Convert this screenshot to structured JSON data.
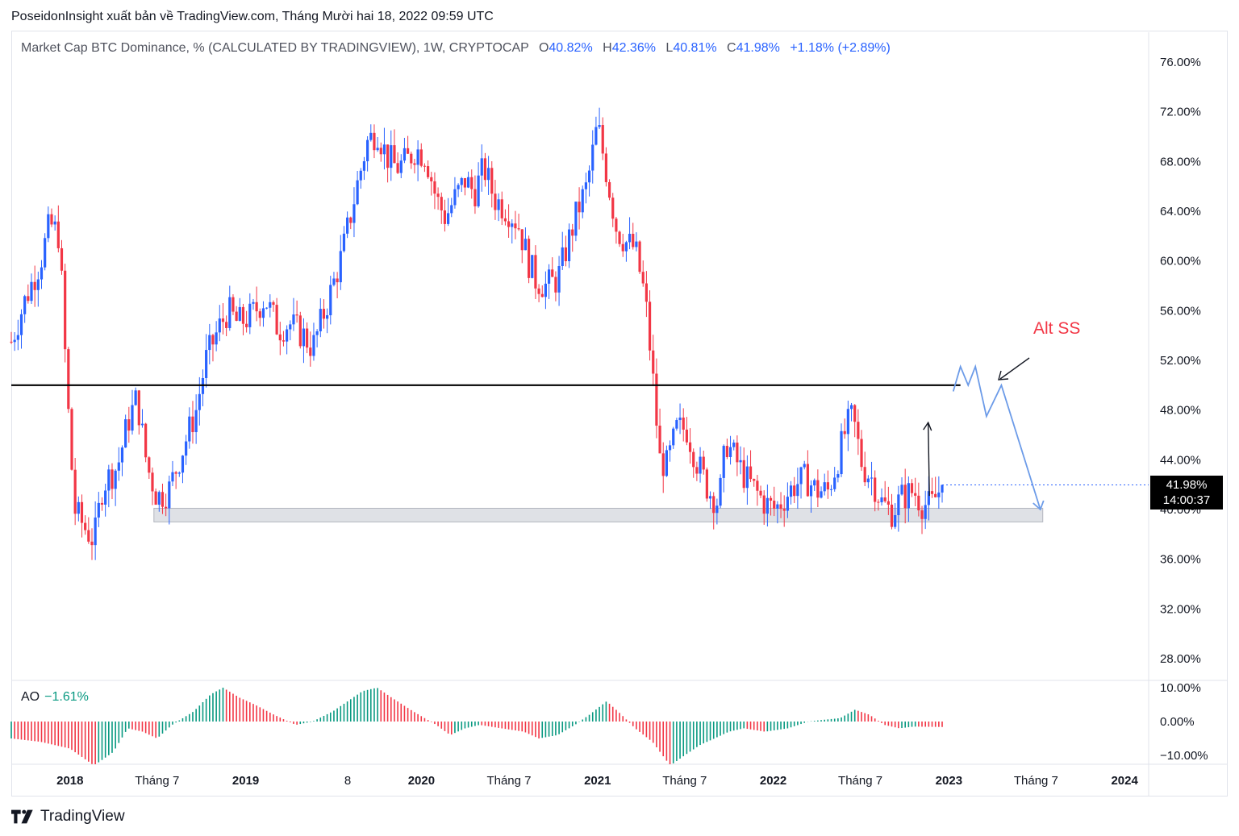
{
  "header": {
    "publisher_line": "PoseidonInsight xuất bản về TradingView.com, Tháng Mười hai 18, 2022 09:59 UTC"
  },
  "legend": {
    "symbol": "Market Cap BTC Dominance, % (CALCULATED BY TRADINGVIEW), 1W, CRYPTOCAP",
    "open_label": "O",
    "open": "40.82%",
    "high_label": "H",
    "high": "42.36%",
    "low_label": "L",
    "low": "40.81%",
    "close_label": "C",
    "close": "41.98%",
    "change": "+1.18% (+2.89%)"
  },
  "indicator": {
    "name": "AO",
    "value": "−1.61%",
    "axis_labels": [
      "10.00%",
      "0.00%",
      "−10.00%"
    ]
  },
  "price_badge": {
    "price": "41.98%",
    "countdown": "14:00:37"
  },
  "annotation": {
    "alt_ss": "Alt SS"
  },
  "footer": {
    "brand": "TradingView"
  },
  "colors": {
    "up": "#2962ff",
    "down": "#f23645",
    "ao_up": "#089981",
    "ao_down": "#f23645",
    "projection": "#6c9be8",
    "support_zone": "#d1d4dc"
  },
  "chart_data": {
    "type": "candlestick",
    "title": "Market Cap BTC Dominance, % (CALCULATED BY TRADINGVIEW), 1W, CRYPTOCAP",
    "interval": "1W",
    "ylim": [
      26,
      78
    ],
    "y_ticks": [
      "76.00%",
      "72.00%",
      "68.00%",
      "64.00%",
      "60.00%",
      "56.00%",
      "52.00%",
      "48.00%",
      "44.00%",
      "40.00%",
      "36.00%",
      "32.00%",
      "28.00%"
    ],
    "x_ticks": [
      "2018",
      "Tháng 7",
      "2019",
      "8",
      "2020",
      "Tháng 7",
      "2021",
      "Tháng 7",
      "2022",
      "Tháng 7",
      "2023",
      "Tháng 7",
      "2024"
    ],
    "x_ticks_bold": [
      "2018",
      "2019",
      "2020",
      "2021",
      "2022",
      "2023",
      "2024"
    ],
    "x_range": [
      "2017-09",
      "2024-02"
    ],
    "last_close": 41.98,
    "resistance_level": 50.0,
    "support_zone": [
      39.0,
      40.1
    ],
    "dominance_path": [
      [
        "2017-09-01",
        53.5
      ],
      [
        "2017-10-01",
        57.0
      ],
      [
        "2017-11-01",
        60.0
      ],
      [
        "2017-11-20",
        63.0
      ],
      [
        "2017-12-10",
        62.0
      ],
      [
        "2017-12-25",
        50.0
      ],
      [
        "2018-01-10",
        40.0
      ],
      [
        "2018-02-01",
        38.5
      ],
      [
        "2018-02-20",
        37.5
      ],
      [
        "2018-03-10",
        42.0
      ],
      [
        "2018-04-10",
        43.5
      ],
      [
        "2018-05-01",
        47.0
      ],
      [
        "2018-05-20",
        49.0
      ],
      [
        "2018-06-10",
        43.5
      ],
      [
        "2018-07-01",
        41.0
      ],
      [
        "2018-07-25",
        41.5
      ],
      [
        "2018-08-20",
        44.5
      ],
      [
        "2018-09-20",
        48.0
      ],
      [
        "2018-10-10",
        52.0
      ],
      [
        "2018-11-05",
        54.5
      ],
      [
        "2018-11-25",
        56.0
      ],
      [
        "2018-12-15",
        55.0
      ],
      [
        "2019-01-10",
        55.5
      ],
      [
        "2019-02-10",
        57.0
      ],
      [
        "2019-03-10",
        54.5
      ],
      [
        "2019-04-01",
        55.0
      ],
      [
        "2019-05-01",
        54.0
      ],
      [
        "2019-05-20",
        53.0
      ],
      [
        "2019-06-10",
        55.5
      ],
      [
        "2019-07-01",
        58.0
      ],
      [
        "2019-07-20",
        60.5
      ],
      [
        "2019-08-20",
        66.0
      ],
      [
        "2019-09-10",
        69.5
      ],
      [
        "2019-10-01",
        70.5
      ],
      [
        "2019-10-20",
        68.5
      ],
      [
        "2019-11-10",
        67.5
      ],
      [
        "2019-12-01",
        68.0
      ],
      [
        "2019-12-20",
        69.0
      ],
      [
        "2020-01-10",
        68.5
      ],
      [
        "2020-02-01",
        65.0
      ],
      [
        "2020-02-20",
        63.5
      ],
      [
        "2020-03-10",
        65.0
      ],
      [
        "2020-04-01",
        66.5
      ],
      [
        "2020-04-20",
        65.5
      ],
      [
        "2020-05-10",
        67.5
      ],
      [
        "2020-06-01",
        65.0
      ],
      [
        "2020-07-01",
        64.0
      ],
      [
        "2020-07-20",
        63.0
      ],
      [
        "2020-08-10",
        60.0
      ],
      [
        "2020-08-25",
        58.5
      ],
      [
        "2020-09-15",
        58.0
      ],
      [
        "2020-10-10",
        58.5
      ],
      [
        "2020-11-01",
        61.5
      ],
      [
        "2020-11-20",
        64.0
      ],
      [
        "2020-12-10",
        66.0
      ],
      [
        "2021-01-01",
        71.0
      ],
      [
        "2021-01-20",
        67.0
      ],
      [
        "2021-02-10",
        62.5
      ],
      [
        "2021-03-01",
        61.5
      ],
      [
        "2021-03-20",
        61.0
      ],
      [
        "2021-04-10",
        57.0
      ],
      [
        "2021-04-25",
        51.0
      ],
      [
        "2021-05-10",
        44.0
      ],
      [
        "2021-05-25",
        43.5
      ],
      [
        "2021-06-15",
        46.5
      ],
      [
        "2021-07-05",
        46.5
      ],
      [
        "2021-07-25",
        44.0
      ],
      [
        "2021-08-20",
        41.5
      ],
      [
        "2021-09-10",
        40.5
      ],
      [
        "2021-09-25",
        45.5
      ],
      [
        "2021-10-15",
        44.0
      ],
      [
        "2021-11-05",
        42.5
      ],
      [
        "2021-11-25",
        41.5
      ],
      [
        "2021-12-15",
        40.5
      ],
      [
        "2022-01-05",
        40.0
      ],
      [
        "2022-01-25",
        41.0
      ],
      [
        "2022-02-15",
        42.0
      ],
      [
        "2022-03-10",
        42.5
      ],
      [
        "2022-04-01",
        41.5
      ],
      [
        "2022-04-25",
        41.5
      ],
      [
        "2022-05-15",
        44.0
      ],
      [
        "2022-06-01",
        46.5
      ],
      [
        "2022-06-15",
        47.5
      ],
      [
        "2022-07-05",
        43.5
      ],
      [
        "2022-07-25",
        42.5
      ],
      [
        "2022-08-15",
        40.5
      ],
      [
        "2022-09-05",
        39.8
      ],
      [
        "2022-09-25",
        41.0
      ],
      [
        "2022-10-20",
        41.5
      ],
      [
        "2022-11-05",
        40.5
      ],
      [
        "2022-11-25",
        40.3
      ],
      [
        "2022-12-18",
        41.98
      ]
    ],
    "ao_series": [
      [
        "2017-09-01",
        -5
      ],
      [
        "2017-11-01",
        -6
      ],
      [
        "2018-01-01",
        -8
      ],
      [
        "2018-02-20",
        -13
      ],
      [
        "2018-04-01",
        -9
      ],
      [
        "2018-05-01",
        -2
      ],
      [
        "2018-06-01",
        -3
      ],
      [
        "2018-07-01",
        -5
      ],
      [
        "2018-08-01",
        -1
      ],
      [
        "2018-09-15",
        3
      ],
      [
        "2018-10-20",
        8
      ],
      [
        "2018-11-15",
        10
      ],
      [
        "2018-12-20",
        7
      ],
      [
        "2019-01-20",
        5
      ],
      [
        "2019-03-01",
        2
      ],
      [
        "2019-04-15",
        -1
      ],
      [
        "2019-05-20",
        0
      ],
      [
        "2019-07-01",
        3
      ],
      [
        "2019-08-01",
        6
      ],
      [
        "2019-09-01",
        9
      ],
      [
        "2019-10-01",
        10
      ],
      [
        "2019-11-01",
        7
      ],
      [
        "2019-12-15",
        3
      ],
      [
        "2020-02-01",
        -1
      ],
      [
        "2020-03-01",
        -4
      ],
      [
        "2020-04-01",
        -2
      ],
      [
        "2020-05-01",
        -1
      ],
      [
        "2020-06-15",
        -2
      ],
      [
        "2020-08-01",
        -3
      ],
      [
        "2020-09-01",
        -5
      ],
      [
        "2020-10-10",
        -4
      ],
      [
        "2020-11-15",
        -1
      ],
      [
        "2020-12-15",
        2
      ],
      [
        "2021-01-20",
        6
      ],
      [
        "2021-02-20",
        2
      ],
      [
        "2021-03-20",
        -2
      ],
      [
        "2021-04-25",
        -6
      ],
      [
        "2021-06-01",
        -13
      ],
      [
        "2021-07-01",
        -10
      ],
      [
        "2021-08-01",
        -7
      ],
      [
        "2021-09-01",
        -5
      ],
      [
        "2021-10-01",
        -3
      ],
      [
        "2021-11-01",
        -2
      ],
      [
        "2021-12-15",
        -3
      ],
      [
        "2022-02-01",
        -2
      ],
      [
        "2022-03-15",
        0
      ],
      [
        "2022-04-15",
        0.5
      ],
      [
        "2022-05-20",
        1
      ],
      [
        "2022-06-20",
        3.5
      ],
      [
        "2022-07-20",
        2
      ],
      [
        "2022-08-20",
        -1
      ],
      [
        "2022-09-20",
        -2
      ],
      [
        "2022-10-20",
        -1.5
      ],
      [
        "2022-12-18",
        -1.61
      ]
    ],
    "projection_path": [
      [
        "2022-12-25",
        42.0
      ],
      [
        "2023-01-25",
        47.0
      ]
    ],
    "projection_zigzag": [
      [
        "2023-01-10",
        49.5
      ],
      [
        "2023-01-25",
        51.5
      ],
      [
        "2023-02-10",
        50.0
      ],
      [
        "2023-02-25",
        51.5
      ],
      [
        "2023-03-20",
        47.5
      ],
      [
        "2023-04-20",
        50.0
      ],
      [
        "2023-07-10",
        40.0
      ]
    ]
  }
}
